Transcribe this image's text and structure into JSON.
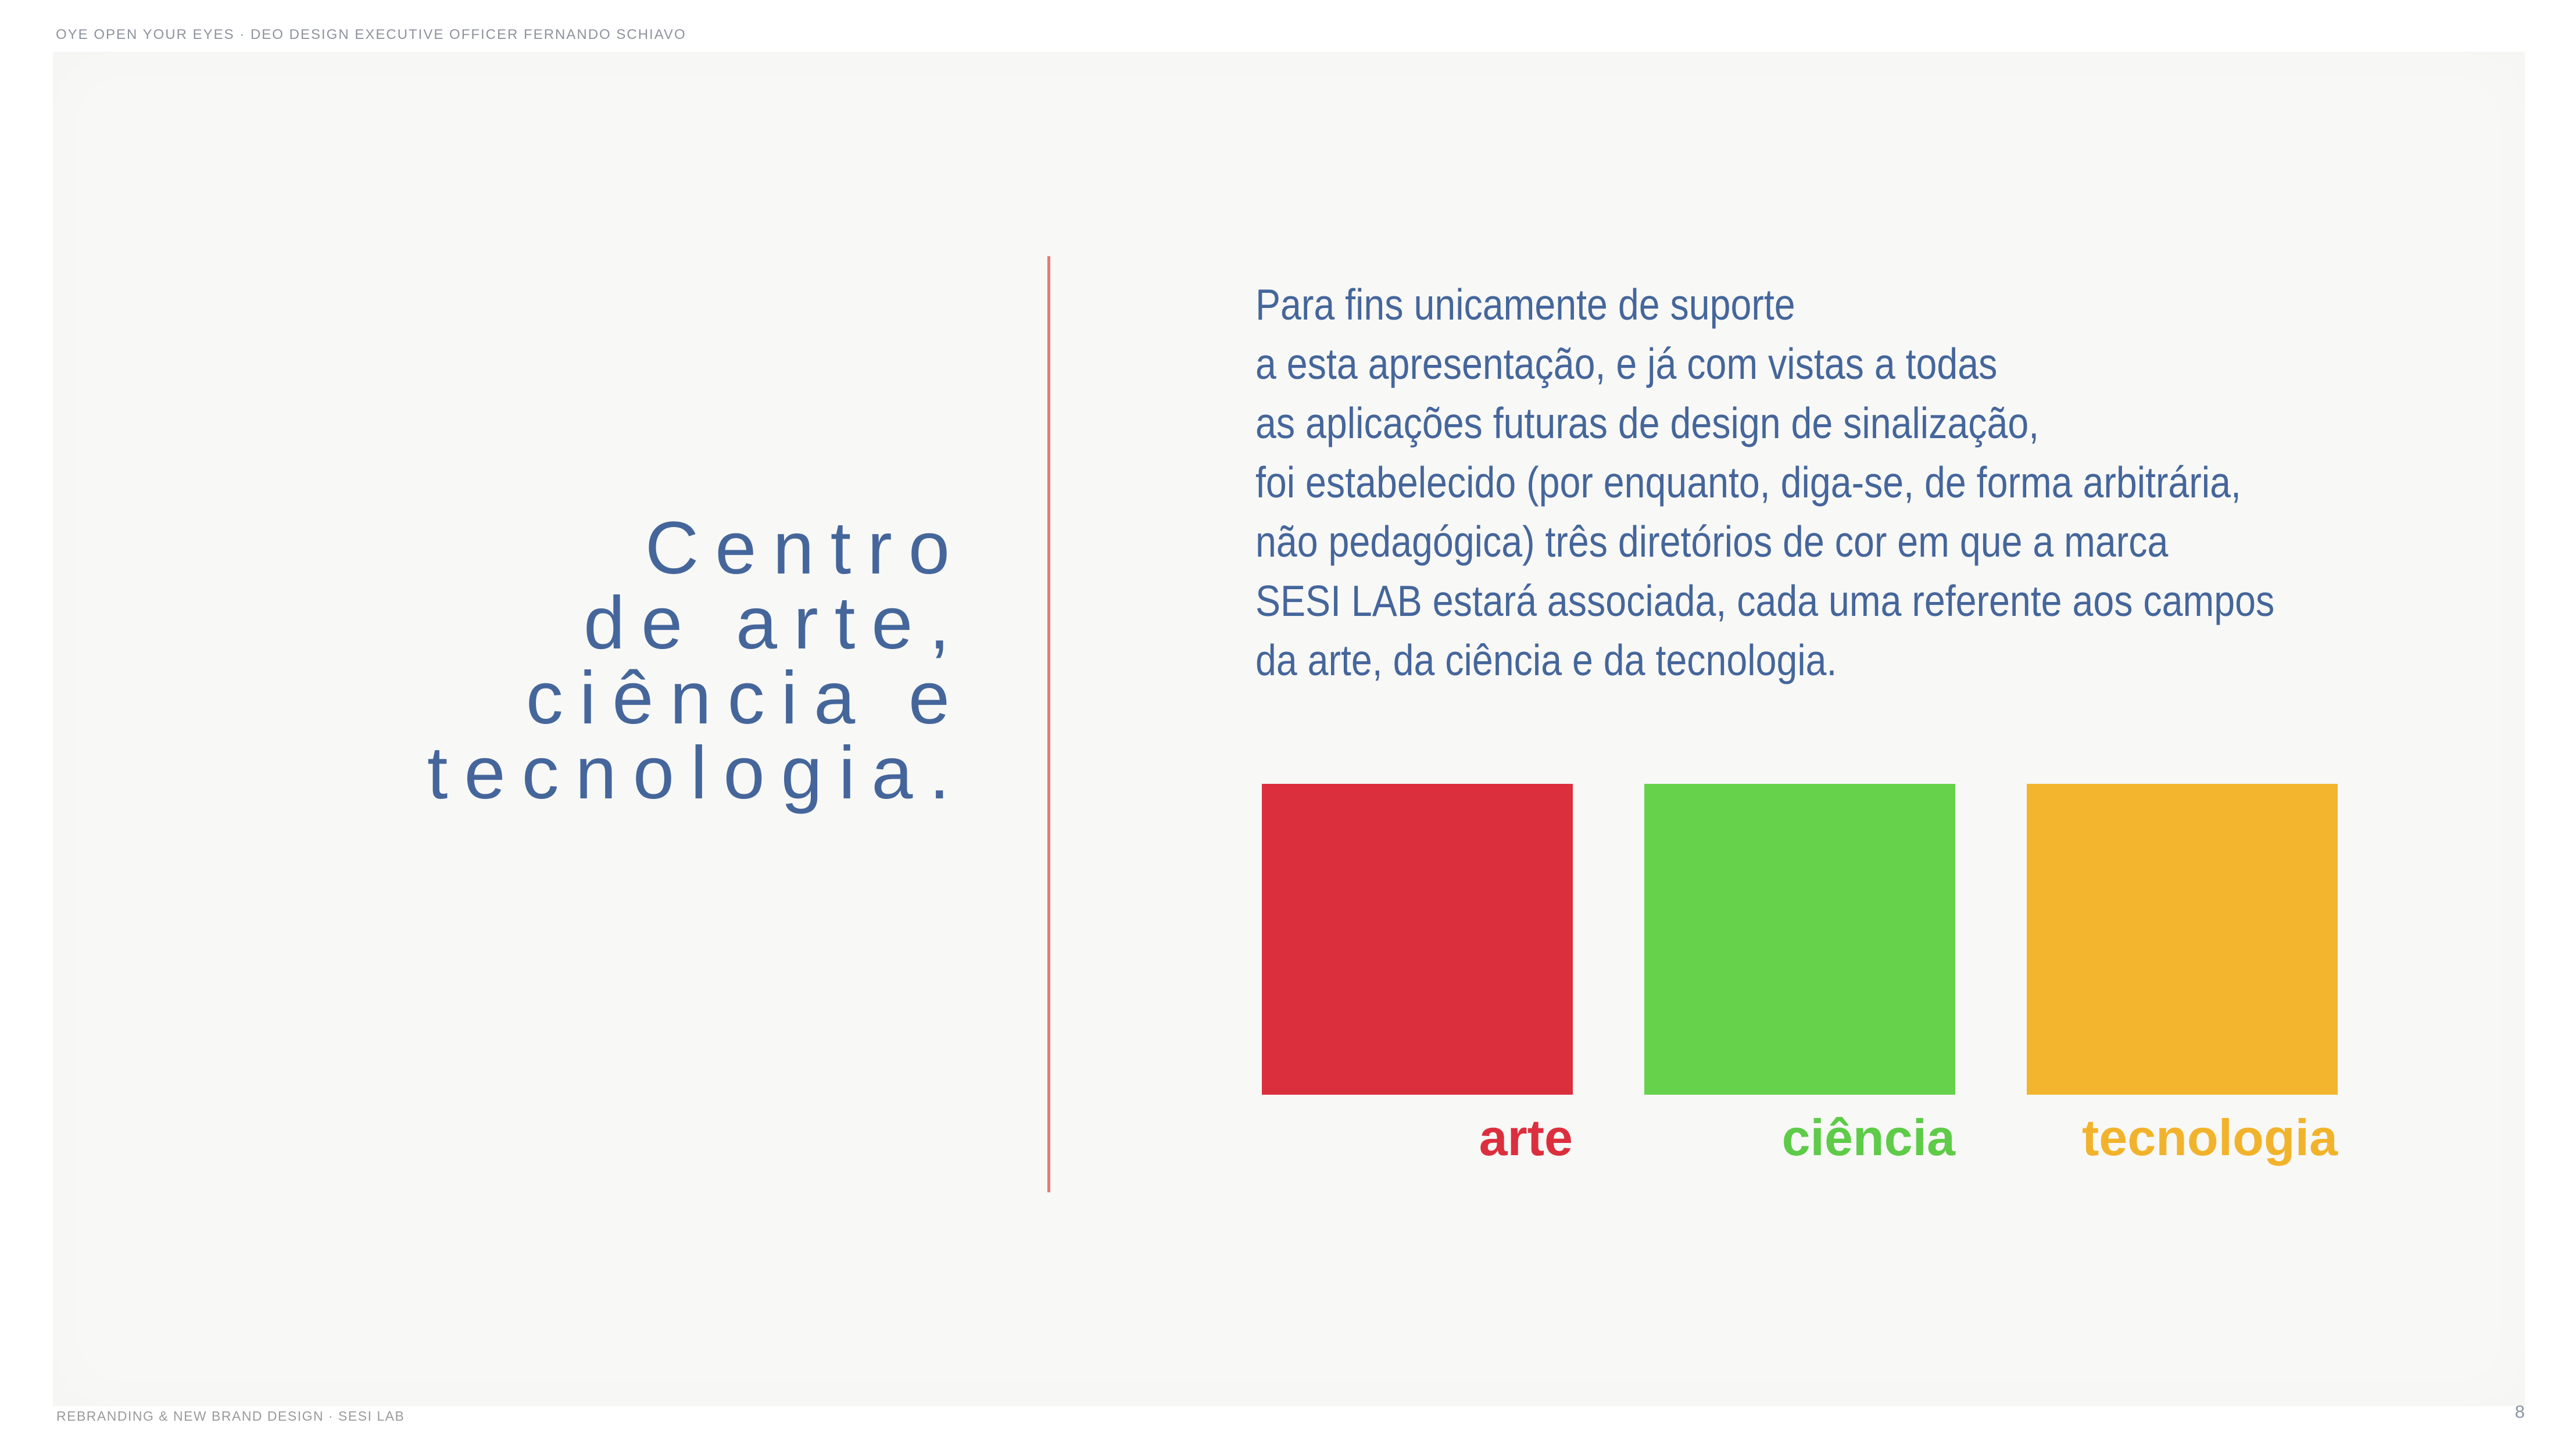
{
  "colors": {
    "page_bg": "#ffffff",
    "canvas_bg": "#f8f8f6",
    "title_blue": "#45669b",
    "body_blue": "#45669b",
    "divider_red": "#e87a73",
    "meta_gray": "#8e939c",
    "footer_gray": "#9a9a9a",
    "page_number_gray": "#8c96a4"
  },
  "header": {
    "credit": "OYE OPEN YOUR EYES · DEO DESIGN EXECUTIVE OFFICER FERNANDO SCHIAVO"
  },
  "main": {
    "title": "Centro\nde arte,\nciência e\ntecnologia.",
    "paragraph": "Para fins unicamente de suporte\na esta apresentação, e já com vistas a todas\nas aplicações futuras de design de sinalização,\nfoi estabelecido (por enquanto, diga-se, de forma arbitrária,\nnão pedagógica) três diretórios de cor em que a marca\nSESI LAB estará associada, cada uma referente aos campos\nda arte, da ciência e da tecnologia.",
    "swatches": [
      {
        "label": "arte",
        "color": "#dc2f3e",
        "label_color": "#dc2f3e"
      },
      {
        "label": "ciência",
        "color": "#66d24b",
        "label_color": "#5ecb49"
      },
      {
        "label": "tecnologia",
        "color": "#f3b52e",
        "label_color": "#f2b32c"
      }
    ]
  },
  "footer": {
    "project": "REBRANDING & NEW BRAND DESIGN · SESI LAB",
    "page_number": "8"
  }
}
